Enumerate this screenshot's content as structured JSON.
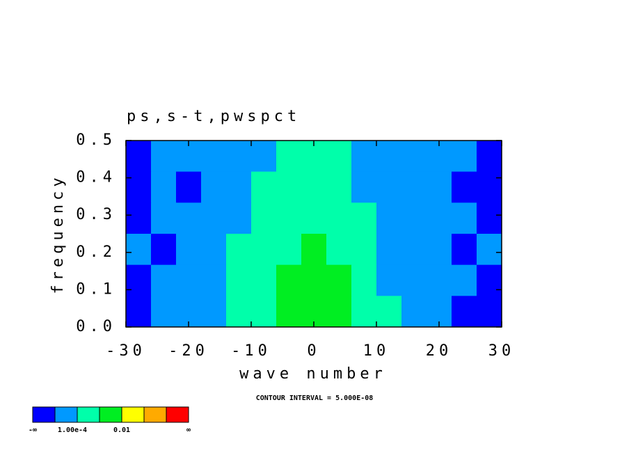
{
  "chart_data": {
    "type": "contour",
    "title": "ps,s-t,pwspct",
    "x_label": "wave number",
    "y_label": "frequency",
    "annotation": "CONTOUR INTERVAL = 5.000E-08",
    "xlim": [
      -30,
      30
    ],
    "xticks": [
      -30,
      -20,
      -10,
      0,
      10,
      20,
      30
    ],
    "ylim": [
      0,
      0.5
    ],
    "yticks": [
      {
        "value": 0,
        "label": "0.0"
      },
      0.1,
      0.2,
      0.3,
      0.4,
      0.5
    ],
    "colorbar": {
      "colors": [
        "#0000ff",
        "#0099ff",
        "#00ffaa",
        "#00ee22",
        "#ffff00",
        "#ffaa00",
        "#ff0000"
      ],
      "labels": [
        "-∞",
        "1.00e-4",
        "0.01",
        "∞"
      ]
    },
    "z": [
      [
        0,
        1,
        1,
        1,
        1,
        1,
        2,
        2,
        2,
        1,
        1,
        1,
        1,
        1,
        0
      ],
      [
        0,
        1,
        0,
        1,
        1,
        2,
        2,
        2,
        2,
        1,
        1,
        1,
        1,
        0,
        0
      ],
      [
        0,
        1,
        1,
        1,
        1,
        2,
        2,
        2,
        2,
        2,
        1,
        1,
        1,
        1,
        0
      ],
      [
        1,
        0,
        1,
        1,
        2,
        2,
        2,
        3,
        2,
        2,
        1,
        1,
        1,
        0,
        1
      ],
      [
        0,
        1,
        1,
        1,
        2,
        2,
        3,
        3,
        3,
        2,
        1,
        1,
        1,
        1,
        0
      ],
      [
        0,
        1,
        1,
        1,
        2,
        2,
        3,
        3,
        3,
        2,
        2,
        1,
        1,
        0,
        0
      ]
    ]
  }
}
